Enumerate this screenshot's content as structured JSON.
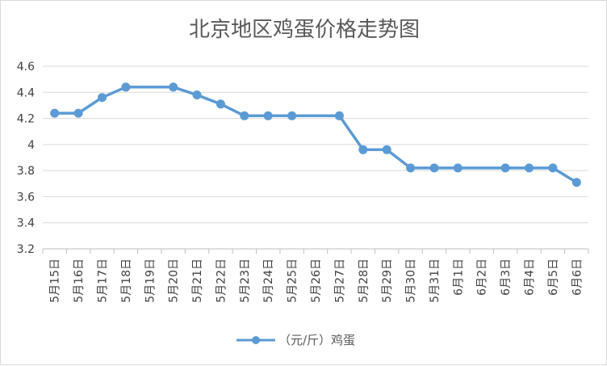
{
  "chart_data": {
    "type": "line",
    "title": "北京地区鸡蛋价格走势图",
    "xlabel": "",
    "ylabel": "",
    "categories": [
      "5月15日",
      "5月16日",
      "5月17日",
      "5月18日",
      "5月19日",
      "5月20日",
      "5月21日",
      "5月22日",
      "5月23日",
      "5月24日",
      "5月25日",
      "5月26日",
      "5月27日",
      "5月28日",
      "5月29日",
      "5月30日",
      "5月31日",
      "6月1日",
      "6月2日",
      "6月3日",
      "6月4日",
      "6月5日",
      "6月6日"
    ],
    "series": [
      {
        "name": "（元/斤）鸡蛋",
        "color": "#5b9bd5",
        "values": [
          4.24,
          4.24,
          4.36,
          4.44,
          null,
          4.44,
          4.38,
          4.31,
          4.22,
          4.22,
          4.22,
          null,
          4.22,
          3.96,
          3.96,
          3.82,
          3.82,
          3.82,
          null,
          3.82,
          3.82,
          3.82,
          3.71
        ]
      }
    ],
    "ylim": [
      3.2,
      4.6
    ],
    "yticks": [
      "3.2",
      "3.4",
      "3.6",
      "3.8",
      "4",
      "4.2",
      "4.4",
      "4.6"
    ],
    "grid": true,
    "legend": "bottom"
  }
}
